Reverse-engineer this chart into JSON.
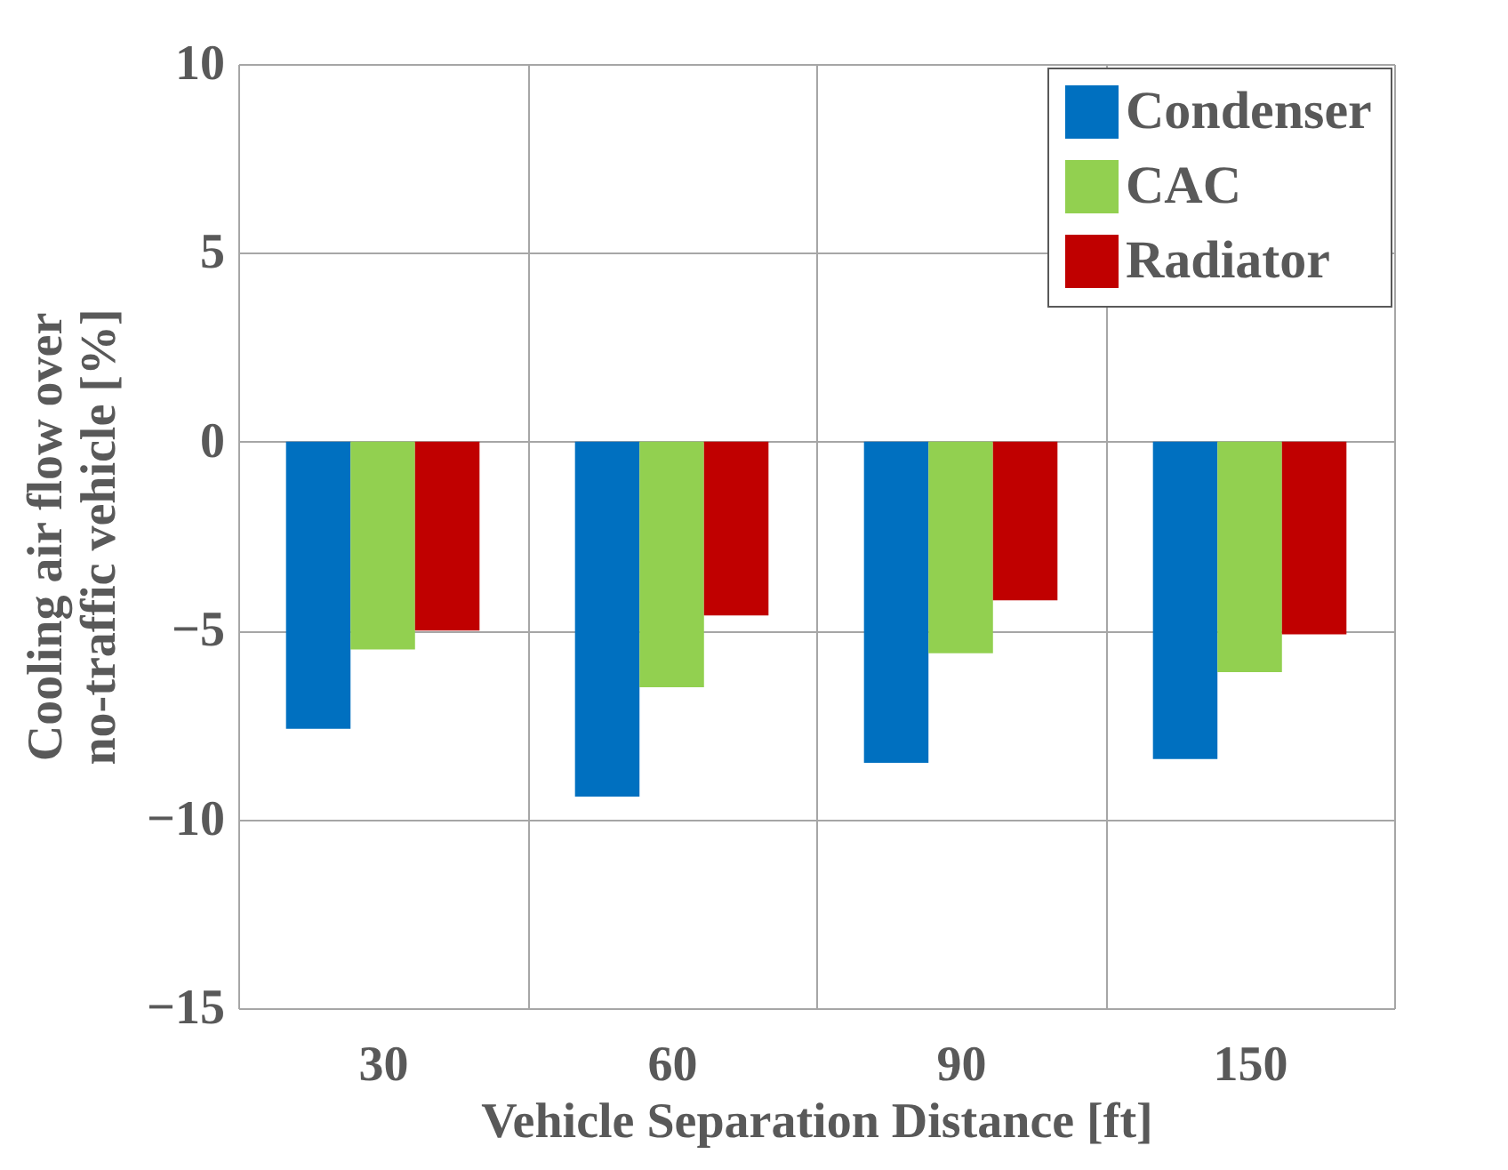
{
  "chart_data": {
    "type": "bar",
    "xlabel": "Vehicle Separation Distance [ft]",
    "ylabel": "Cooling air flow over no-traffic vehicle [%]",
    "categories": [
      "30",
      "60",
      "90",
      "150"
    ],
    "series": [
      {
        "name": "Condenser",
        "color": "#0070c0",
        "values": [
          -7.6,
          -9.4,
          -8.5,
          -8.4
        ]
      },
      {
        "name": "CAC",
        "color": "#92d050",
        "values": [
          -5.5,
          -6.5,
          -5.6,
          -6.1
        ]
      },
      {
        "name": "Radiator",
        "color": "#c00000",
        "values": [
          -5.0,
          -4.6,
          -4.2,
          -5.1
        ]
      }
    ],
    "ylim": [
      -15,
      10
    ],
    "yticks": [
      -15,
      -10,
      -5,
      0,
      5,
      10
    ],
    "grid": true,
    "legend": "top right"
  }
}
